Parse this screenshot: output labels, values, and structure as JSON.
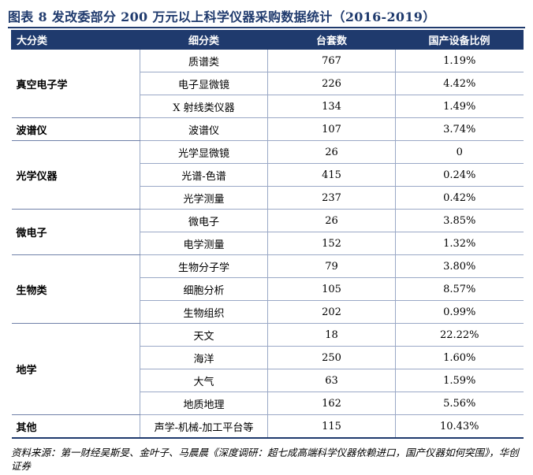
{
  "title": "图表 8 发改委部分 200 万元以上科学仪器采购数据统计（2016-2019）",
  "headers": [
    "大分类",
    "细分类",
    "台套数",
    "国产设备比例"
  ],
  "groups": [
    {
      "category": "真空电子学",
      "rows": [
        {
          "sub": "质谱类",
          "count": "767",
          "ratio": "1.19%"
        },
        {
          "sub": "电子显微镜",
          "count": "226",
          "ratio": "4.42%"
        },
        {
          "sub": "X 射线类仪器",
          "count": "134",
          "ratio": "1.49%"
        }
      ]
    },
    {
      "category": "波谱仪",
      "rows": [
        {
          "sub": "波谱仪",
          "count": "107",
          "ratio": "3.74%"
        }
      ]
    },
    {
      "category": "光学仪器",
      "rows": [
        {
          "sub": "光学显微镜",
          "count": "26",
          "ratio": "0"
        },
        {
          "sub": "光谱-色谱",
          "count": "415",
          "ratio": "0.24%"
        },
        {
          "sub": "光学测量",
          "count": "237",
          "ratio": "0.42%"
        }
      ]
    },
    {
      "category": "微电子",
      "rows": [
        {
          "sub": "微电子",
          "count": "26",
          "ratio": "3.85%"
        },
        {
          "sub": "电学测量",
          "count": "152",
          "ratio": "1.32%"
        }
      ]
    },
    {
      "category": "生物类",
      "rows": [
        {
          "sub": "生物分子学",
          "count": "79",
          "ratio": "3.80%"
        },
        {
          "sub": "细胞分析",
          "count": "105",
          "ratio": "8.57%"
        },
        {
          "sub": "生物组织",
          "count": "202",
          "ratio": "0.99%"
        }
      ]
    },
    {
      "category": "地学",
      "rows": [
        {
          "sub": "天文",
          "count": "18",
          "ratio": "22.22%"
        },
        {
          "sub": "海洋",
          "count": "250",
          "ratio": "1.60%"
        },
        {
          "sub": "大气",
          "count": "63",
          "ratio": "1.59%"
        },
        {
          "sub": "地质地理",
          "count": "162",
          "ratio": "5.56%"
        }
      ]
    },
    {
      "category": "其他",
      "rows": [
        {
          "sub": "声学-机械-加工平台等",
          "count": "115",
          "ratio": "10.43%"
        }
      ]
    }
  ],
  "source": "资料来源：第一财经吴斯旻、金叶子、马晨晨《深度调研：超七成高端科学仪器依赖进口，国产仪器如何突围》，华创证券"
}
